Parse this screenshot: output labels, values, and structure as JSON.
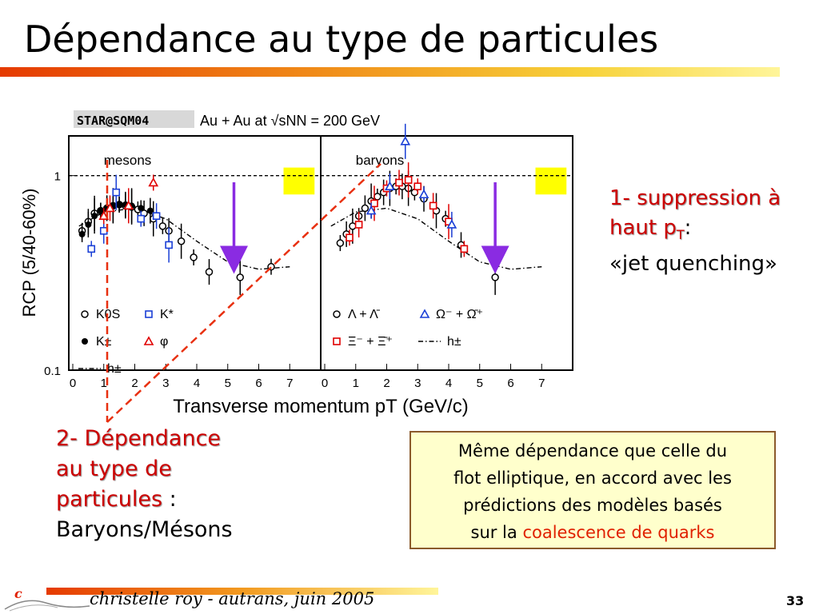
{
  "slide": {
    "title": "Dépendance au type de particules",
    "footer": "christelle roy - autrans, juin 2005",
    "page_number": "33"
  },
  "notes": {
    "n1_line1": "1- suppression à",
    "n1_line2a": "haut p",
    "n1_line2sub": "T",
    "n1_line2b": ":",
    "n1_line3": "«jet quenching»",
    "n2_line1": "2- Dépendance",
    "n2_line2": "au type de",
    "n2_line3a": "particules",
    "n2_line3b": " :",
    "n2_line4": "Baryons/Mésons"
  },
  "box": {
    "line1": "Même dépendance que celle du",
    "line2": "flot elliptique, en accord avec les",
    "line3": "prédictions des modèles basés",
    "line4a": "sur la ",
    "line4b": "coalescence de quarks"
  },
  "colors": {
    "red": "#e00000",
    "blue": "#1a3fd6",
    "purple": "#8a2be2",
    "yellow": "#ffff00",
    "dash_red": "#e83010"
  },
  "chart_data": {
    "type": "scatter",
    "header_tag": "STAR@SQM04",
    "header_text": "Au + Au at √sNN = 200 GeV",
    "xlabel": "Transverse momentum pT (GeV/c)",
    "ylabel": "RCP (5/40-60%)",
    "yscale": "log",
    "ylim": [
      0.1,
      1.6
    ],
    "xlim": [
      0,
      8
    ],
    "xticks": [
      0,
      1,
      2,
      3,
      4,
      5,
      6,
      7
    ],
    "yticks": [
      {
        "v": 1,
        "label": "1"
      },
      {
        "v": 0.1,
        "label": "0.1"
      }
    ],
    "panels": [
      {
        "label": "mesons",
        "legend": [
          {
            "marker": "open-circle",
            "color": "#000000",
            "text": "K0S"
          },
          {
            "marker": "open-square",
            "color": "#1a3fd6",
            "text": "K*"
          },
          {
            "marker": "filled-circle",
            "color": "#000000",
            "text": "K±"
          },
          {
            "marker": "open-triangle",
            "color": "#e00000",
            "text": "φ"
          },
          {
            "marker": "dashdot",
            "color": "#000000",
            "text": "h±"
          }
        ],
        "series": [
          {
            "name": "K0S",
            "marker": "open-circle",
            "color": "#000000",
            "x": [
              0.3,
              0.5,
              0.7,
              0.9,
              1.1,
              1.3,
              1.5,
              1.7,
              1.9,
              2.1,
              2.3,
              2.6,
              2.9,
              3.1,
              3.5,
              3.9,
              4.4,
              5.4,
              6.4
            ],
            "y": [
              0.52,
              0.58,
              0.64,
              0.66,
              0.68,
              0.7,
              0.71,
              0.7,
              0.69,
              0.67,
              0.64,
              0.6,
              0.55,
              0.52,
              0.46,
              0.38,
              0.32,
              0.3,
              0.34
            ]
          },
          {
            "name": "K±",
            "marker": "filled-circle",
            "color": "#000000",
            "x": [
              0.3,
              0.5,
              0.7,
              0.9,
              1.1,
              1.3,
              1.5,
              1.7,
              1.9,
              2.2,
              2.5
            ],
            "y": [
              0.5,
              0.56,
              0.62,
              0.66,
              0.68,
              0.7,
              0.71,
              0.71,
              0.7,
              0.68,
              0.66
            ]
          },
          {
            "name": "K*",
            "marker": "open-square",
            "color": "#1a3fd6",
            "x": [
              0.6,
              1.0,
              1.4,
              2.2,
              2.7,
              3.1
            ],
            "y": [
              0.42,
              0.52,
              0.82,
              0.6,
              0.62,
              0.44
            ]
          },
          {
            "name": "φ",
            "marker": "open-triangle",
            "color": "#e00000",
            "x": [
              1.0,
              1.2,
              1.8,
              2.6
            ],
            "y": [
              0.62,
              0.68,
              0.7,
              0.92
            ]
          },
          {
            "name": "h±",
            "marker": "dashdot",
            "color": "#000000",
            "x": [
              0.2,
              1.0,
              2.0,
              3.0,
              4.0,
              5.0,
              6.0,
              7.0
            ],
            "y": [
              0.55,
              0.65,
              0.68,
              0.6,
              0.46,
              0.36,
              0.33,
              0.34
            ]
          }
        ],
        "arrow_x": 5.2,
        "band": {
          "x0": 6.8,
          "x1": 7.8,
          "y0": 0.8,
          "y1": 1.1
        }
      },
      {
        "label": "baryons",
        "legend": [
          {
            "marker": "open-circle",
            "color": "#000000",
            "text": "Λ + Λ̄"
          },
          {
            "marker": "open-triangle",
            "color": "#1a3fd6",
            "text": "Ω⁻ + Ω̄⁺"
          },
          {
            "marker": "open-square",
            "color": "#e00000",
            "text": "Ξ⁻ + Ξ̄⁺"
          },
          {
            "marker": "dashdot",
            "color": "#000000",
            "text": "h±"
          }
        ],
        "series": [
          {
            "name": "Λ + Λ̄",
            "marker": "open-circle",
            "color": "#000000",
            "x": [
              0.5,
              0.7,
              0.9,
              1.1,
              1.3,
              1.5,
              1.7,
              1.9,
              2.1,
              2.3,
              2.5,
              2.7,
              2.9,
              3.2,
              3.6,
              3.9,
              4.4,
              5.5
            ],
            "y": [
              0.45,
              0.5,
              0.55,
              0.62,
              0.68,
              0.74,
              0.78,
              0.82,
              0.86,
              0.88,
              0.88,
              0.86,
              0.82,
              0.76,
              0.66,
              0.6,
              0.44,
              0.3
            ]
          },
          {
            "name": "Ξ⁻ + Ξ̄⁺",
            "marker": "open-square",
            "color": "#e00000",
            "x": [
              0.8,
              1.1,
              1.6,
              2.0,
              2.4,
              2.7,
              3.0,
              3.5,
              4.0,
              4.5
            ],
            "y": [
              0.48,
              0.56,
              0.72,
              0.86,
              0.92,
              0.95,
              0.88,
              0.7,
              0.58,
              0.42
            ]
          },
          {
            "name": "Ω⁻ + Ω̄⁺",
            "marker": "open-triangle",
            "color": "#1a3fd6",
            "x": [
              1.5,
              2.1,
              2.6,
              3.2,
              4.1
            ],
            "y": [
              0.66,
              0.88,
              1.5,
              0.8,
              0.56
            ]
          },
          {
            "name": "h±",
            "marker": "dashdot",
            "color": "#000000",
            "x": [
              0.2,
              1.0,
              2.0,
              3.0,
              4.0,
              5.0,
              6.0,
              7.0
            ],
            "y": [
              0.55,
              0.65,
              0.68,
              0.6,
              0.46,
              0.36,
              0.33,
              0.34
            ]
          }
        ],
        "arrow_x": 5.5,
        "band": {
          "x0": 6.8,
          "x1": 7.8,
          "y0": 0.8,
          "y1": 1.1
        }
      }
    ]
  }
}
